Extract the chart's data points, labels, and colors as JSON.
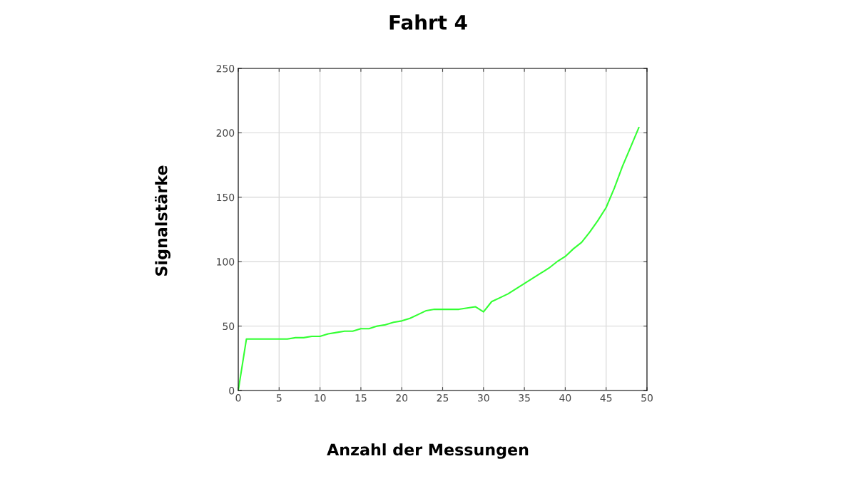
{
  "chart_data": {
    "type": "line",
    "title": "Fahrt 4",
    "xlabel": "Anzahl der Messungen",
    "ylabel": "Signalstärke",
    "x": [
      0,
      1,
      2,
      3,
      4,
      5,
      6,
      7,
      8,
      9,
      10,
      11,
      12,
      13,
      14,
      15,
      16,
      17,
      18,
      19,
      20,
      21,
      22,
      23,
      24,
      25,
      26,
      27,
      28,
      29,
      30,
      31,
      32,
      33,
      34,
      35,
      36,
      37,
      38,
      39,
      40,
      41,
      42,
      43,
      44,
      45,
      46,
      47,
      48,
      49
    ],
    "series": [
      {
        "color": "#33ff33",
        "values": [
          0,
          40,
          40,
          40,
          40,
          40,
          40,
          41,
          41,
          42,
          42,
          44,
          45,
          46,
          46,
          48,
          48,
          50,
          51,
          53,
          54,
          56,
          59,
          62,
          63,
          63,
          63,
          63,
          64,
          65,
          61,
          69,
          72,
          75,
          79,
          83,
          87,
          91,
          95,
          100,
          104,
          110,
          115,
          123,
          132,
          142,
          157,
          174,
          189,
          204
        ]
      }
    ],
    "xlim": [
      0,
      50
    ],
    "xticks": [
      0,
      5,
      10,
      15,
      20,
      25,
      30,
      35,
      40,
      45,
      50
    ],
    "ylim": [
      0,
      250
    ],
    "yticks": [
      0,
      50,
      100,
      150,
      200,
      250
    ],
    "grid": true,
    "marker": "none",
    "line_style": "solid"
  }
}
